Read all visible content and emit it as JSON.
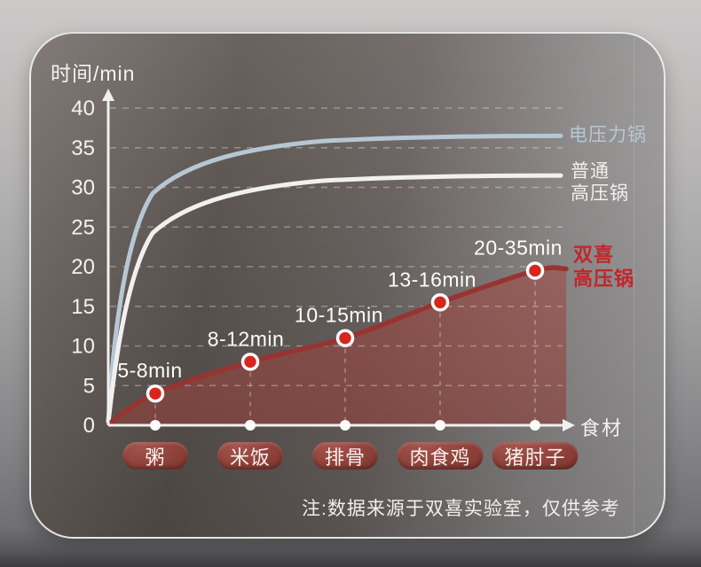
{
  "card": {
    "y_axis_title": "时间/min",
    "x_axis_label": "食材",
    "footnote": "注:数据来源于双喜实验室，仅供参考"
  },
  "legend": [
    {
      "label": "电压力锅",
      "color": "#b6c7d4"
    },
    {
      "label": "普通\n高压锅",
      "color": "#f2f0ee"
    },
    {
      "label": "双喜\n高压锅",
      "color": "#c3252b"
    }
  ],
  "colors": {
    "electric_curve": "#b6c7d4",
    "ordinary_curve": "#f2f0ee",
    "shuangxi_line": "#983430",
    "shuangxi_area": "#a24a44",
    "data_point": "#d7261e",
    "axis": "#f2f0ee",
    "pill_bg": "#8d4039"
  },
  "chart_data": {
    "type": "line",
    "title": "",
    "xlabel": "食材",
    "ylabel": "时间/min",
    "ylim": [
      0,
      40
    ],
    "yticks": [
      0,
      5,
      10,
      15,
      20,
      25,
      30,
      35,
      40
    ],
    "grid": "dashed",
    "legend_position": "right",
    "categories": [
      "粥",
      "米饭",
      "排骨",
      "肉食鸡",
      "猪肘子"
    ],
    "series": [
      {
        "name": "双喜高压锅",
        "style": "area-line-with-points",
        "time_ranges": [
          "5-8",
          "8-12",
          "10-15",
          "13-16",
          "20-35"
        ],
        "point_labels": [
          "5-8min",
          "8-12min",
          "10-15min",
          "13-16min",
          "20-35min"
        ],
        "plot_values": [
          4,
          8,
          11,
          15.5,
          19.5
        ]
      },
      {
        "name": "普通高压锅",
        "style": "smooth-saturation-curve",
        "asymptote_value": 31.5
      },
      {
        "name": "电压力锅",
        "style": "smooth-saturation-curve",
        "asymptote_value": 36.5
      }
    ],
    "note": "注:数据来源于双喜实验室，仅供参考"
  }
}
